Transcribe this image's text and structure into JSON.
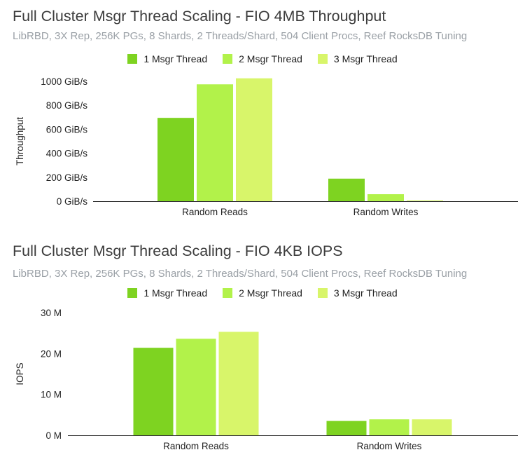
{
  "chart_data": [
    {
      "type": "bar",
      "title": "Full Cluster Msgr Thread Scaling - FIO 4MB Throughput",
      "subtitle": "LibRBD, 3X Rep, 256K PGs, 8 Shards, 2 Threads/Shard, 504 Client Procs, Reef RocksDB Tuning",
      "xlabel": "",
      "ylabel": "Throughput",
      "ylim": [
        0,
        1000
      ],
      "yticks": [
        0,
        200,
        400,
        600,
        800,
        1000
      ],
      "ytick_labels": [
        "0 GiB/s",
        "200 GiB/s",
        "400 GiB/s",
        "600 GiB/s",
        "800 GiB/s",
        "1000 GiB/s"
      ],
      "categories": [
        "Random Reads",
        "Random Writes"
      ],
      "series": [
        {
          "name": "1 Msgr Thread",
          "color": "#7ed321",
          "values": [
            695,
            188
          ]
        },
        {
          "name": "2 Msgr Thread",
          "color": "#b2f24a",
          "values": [
            975,
            58
          ]
        },
        {
          "name": "3 Msgr Thread",
          "color": "#d8f56a",
          "values": [
            1025,
            5
          ]
        }
      ],
      "grid": false,
      "legend": "top-center"
    },
    {
      "type": "bar",
      "title": "Full Cluster Msgr Thread Scaling - FIO 4KB IOPS",
      "subtitle": "LibRBD, 3X Rep, 256K PGs, 8 Shards, 2 Threads/Shard, 504 Client Procs, Reef RocksDB Tuning",
      "xlabel": "",
      "ylabel": "IOPS",
      "ylim": [
        0,
        30000000
      ],
      "yticks": [
        0,
        10000000,
        20000000,
        30000000
      ],
      "ytick_labels": [
        "0 M",
        "10 M",
        "20 M",
        "30 M"
      ],
      "categories": [
        "Random Reads",
        "Random Writes"
      ],
      "series": [
        {
          "name": "1 Msgr Thread",
          "color": "#7ed321",
          "values": [
            21400000,
            3500000
          ]
        },
        {
          "name": "2 Msgr Thread",
          "color": "#b2f24a",
          "values": [
            23600000,
            3900000
          ]
        },
        {
          "name": "3 Msgr Thread",
          "color": "#d8f56a",
          "values": [
            25300000,
            3900000
          ]
        }
      ],
      "grid": false,
      "legend": "top-center"
    }
  ]
}
